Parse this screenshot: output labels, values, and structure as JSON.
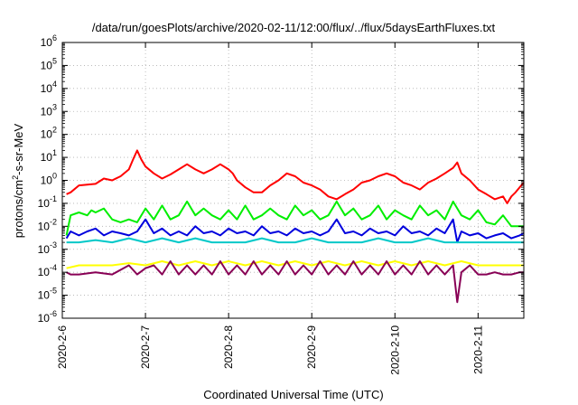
{
  "chart_data": {
    "type": "line",
    "title": "/data/run/goesPlots/archive/2020-02-11/12:00/flux/../flux/5daysEarthFluxes.txt",
    "xlabel": "Coordinated Universal Time (UTC)",
    "ylabel_main": "protons/cm",
    "ylabel_sup": "2",
    "ylabel_tail": "-s-sr-MeV",
    "y_scale": "log",
    "ylim_exponents": [
      -6,
      6
    ],
    "y_ticks": [
      {
        "base": "10",
        "exp": "-6",
        "e": -6
      },
      {
        "base": "10",
        "exp": "-5",
        "e": -5
      },
      {
        "base": "10",
        "exp": "-4",
        "e": -4
      },
      {
        "base": "10",
        "exp": "-3",
        "e": -3
      },
      {
        "base": "10",
        "exp": "-2",
        "e": -2
      },
      {
        "base": "10",
        "exp": "-1",
        "e": -1
      },
      {
        "base": "10",
        "exp": "0",
        "e": 0
      },
      {
        "base": "10",
        "exp": "1",
        "e": 1
      },
      {
        "base": "10",
        "exp": "2",
        "e": 2
      },
      {
        "base": "10",
        "exp": "3",
        "e": 3
      },
      {
        "base": "10",
        "exp": "4",
        "e": 4
      },
      {
        "base": "10",
        "exp": "5",
        "e": 5
      },
      {
        "base": "10",
        "exp": "6",
        "e": 6
      }
    ],
    "x_range_days": [
      0,
      5.55
    ],
    "x_ticks": [
      {
        "label": "2020-2-6",
        "d": 0
      },
      {
        "label": "2020-2-7",
        "d": 1
      },
      {
        "label": "2020-2-8",
        "d": 2
      },
      {
        "label": "2020-2-9",
        "d": 3
      },
      {
        "label": "2020-2-10",
        "d": 4
      },
      {
        "label": "2020-2-11",
        "d": 5
      }
    ],
    "grid": true,
    "series": [
      {
        "color": "#ff0000",
        "points": [
          [
            0.05,
            0.25
          ],
          [
            0.1,
            0.3
          ],
          [
            0.2,
            0.6
          ],
          [
            0.4,
            0.7
          ],
          [
            0.5,
            1.2
          ],
          [
            0.6,
            1.0
          ],
          [
            0.7,
            1.5
          ],
          [
            0.8,
            3
          ],
          [
            0.85,
            8
          ],
          [
            0.9,
            20
          ],
          [
            0.95,
            8
          ],
          [
            1.0,
            4
          ],
          [
            1.1,
            2
          ],
          [
            1.2,
            1.2
          ],
          [
            1.3,
            1.8
          ],
          [
            1.4,
            3
          ],
          [
            1.5,
            5
          ],
          [
            1.6,
            3
          ],
          [
            1.7,
            2
          ],
          [
            1.8,
            3
          ],
          [
            1.9,
            5
          ],
          [
            2.0,
            3
          ],
          [
            2.05,
            2
          ],
          [
            2.1,
            1
          ],
          [
            2.2,
            0.5
          ],
          [
            2.3,
            0.3
          ],
          [
            2.4,
            0.3
          ],
          [
            2.5,
            0.6
          ],
          [
            2.6,
            1.0
          ],
          [
            2.7,
            2
          ],
          [
            2.8,
            1.5
          ],
          [
            2.9,
            0.8
          ],
          [
            3.0,
            0.6
          ],
          [
            3.1,
            0.4
          ],
          [
            3.2,
            0.2
          ],
          [
            3.3,
            0.15
          ],
          [
            3.4,
            0.25
          ],
          [
            3.5,
            0.4
          ],
          [
            3.6,
            0.8
          ],
          [
            3.7,
            1.0
          ],
          [
            3.8,
            1.5
          ],
          [
            3.9,
            2.0
          ],
          [
            4.0,
            1.5
          ],
          [
            4.1,
            0.8
          ],
          [
            4.2,
            0.6
          ],
          [
            4.3,
            0.4
          ],
          [
            4.4,
            0.8
          ],
          [
            4.5,
            1.2
          ],
          [
            4.6,
            2.0
          ],
          [
            4.7,
            3.5
          ],
          [
            4.75,
            6
          ],
          [
            4.8,
            2
          ],
          [
            4.9,
            1.0
          ],
          [
            5.0,
            0.4
          ],
          [
            5.1,
            0.25
          ],
          [
            5.2,
            0.15
          ],
          [
            5.3,
            0.2
          ],
          [
            5.35,
            0.1
          ],
          [
            5.4,
            0.2
          ],
          [
            5.45,
            0.3
          ],
          [
            5.5,
            0.5
          ],
          [
            5.55,
            0.8
          ]
        ]
      },
      {
        "color": "#00ee00",
        "points": [
          [
            0.05,
            0.004
          ],
          [
            0.1,
            0.03
          ],
          [
            0.2,
            0.04
          ],
          [
            0.3,
            0.03
          ],
          [
            0.35,
            0.05
          ],
          [
            0.4,
            0.04
          ],
          [
            0.5,
            0.06
          ],
          [
            0.6,
            0.02
          ],
          [
            0.7,
            0.015
          ],
          [
            0.8,
            0.02
          ],
          [
            0.9,
            0.015
          ],
          [
            1.0,
            0.06
          ],
          [
            1.1,
            0.02
          ],
          [
            1.2,
            0.08
          ],
          [
            1.3,
            0.02
          ],
          [
            1.4,
            0.03
          ],
          [
            1.5,
            0.12
          ],
          [
            1.6,
            0.03
          ],
          [
            1.7,
            0.06
          ],
          [
            1.8,
            0.03
          ],
          [
            1.9,
            0.02
          ],
          [
            2.0,
            0.05
          ],
          [
            2.1,
            0.02
          ],
          [
            2.2,
            0.08
          ],
          [
            2.3,
            0.02
          ],
          [
            2.4,
            0.03
          ],
          [
            2.5,
            0.06
          ],
          [
            2.6,
            0.03
          ],
          [
            2.7,
            0.02
          ],
          [
            2.8,
            0.08
          ],
          [
            2.9,
            0.03
          ],
          [
            3.0,
            0.05
          ],
          [
            3.1,
            0.02
          ],
          [
            3.2,
            0.03
          ],
          [
            3.3,
            0.12
          ],
          [
            3.4,
            0.03
          ],
          [
            3.5,
            0.06
          ],
          [
            3.6,
            0.02
          ],
          [
            3.7,
            0.03
          ],
          [
            3.8,
            0.08
          ],
          [
            3.9,
            0.02
          ],
          [
            4.0,
            0.05
          ],
          [
            4.1,
            0.03
          ],
          [
            4.2,
            0.02
          ],
          [
            4.3,
            0.08
          ],
          [
            4.4,
            0.03
          ],
          [
            4.5,
            0.05
          ],
          [
            4.6,
            0.02
          ],
          [
            4.7,
            0.12
          ],
          [
            4.8,
            0.03
          ],
          [
            4.9,
            0.02
          ],
          [
            5.0,
            0.05
          ],
          [
            5.1,
            0.015
          ],
          [
            5.2,
            0.012
          ],
          [
            5.3,
            0.03
          ],
          [
            5.4,
            0.01
          ],
          [
            5.5,
            0.01
          ],
          [
            5.55,
            0.01
          ]
        ]
      },
      {
        "color": "#0000dd",
        "points": [
          [
            0.05,
            0.003
          ],
          [
            0.1,
            0.006
          ],
          [
            0.2,
            0.004
          ],
          [
            0.3,
            0.006
          ],
          [
            0.4,
            0.008
          ],
          [
            0.5,
            0.004
          ],
          [
            0.6,
            0.006
          ],
          [
            0.7,
            0.005
          ],
          [
            0.8,
            0.004
          ],
          [
            0.9,
            0.006
          ],
          [
            1.0,
            0.02
          ],
          [
            1.1,
            0.005
          ],
          [
            1.2,
            0.008
          ],
          [
            1.3,
            0.004
          ],
          [
            1.4,
            0.006
          ],
          [
            1.5,
            0.004
          ],
          [
            1.6,
            0.01
          ],
          [
            1.7,
            0.005
          ],
          [
            1.8,
            0.006
          ],
          [
            1.9,
            0.004
          ],
          [
            2.0,
            0.008
          ],
          [
            2.1,
            0.005
          ],
          [
            2.2,
            0.006
          ],
          [
            2.3,
            0.004
          ],
          [
            2.4,
            0.01
          ],
          [
            2.5,
            0.005
          ],
          [
            2.6,
            0.006
          ],
          [
            2.7,
            0.004
          ],
          [
            2.8,
            0.008
          ],
          [
            2.9,
            0.005
          ],
          [
            3.0,
            0.006
          ],
          [
            3.1,
            0.004
          ],
          [
            3.2,
            0.006
          ],
          [
            3.3,
            0.02
          ],
          [
            3.4,
            0.005
          ],
          [
            3.5,
            0.006
          ],
          [
            3.6,
            0.004
          ],
          [
            3.7,
            0.008
          ],
          [
            3.8,
            0.005
          ],
          [
            3.9,
            0.006
          ],
          [
            4.0,
            0.004
          ],
          [
            4.1,
            0.01
          ],
          [
            4.2,
            0.005
          ],
          [
            4.3,
            0.006
          ],
          [
            4.4,
            0.004
          ],
          [
            4.5,
            0.008
          ],
          [
            4.6,
            0.005
          ],
          [
            4.7,
            0.02
          ],
          [
            4.75,
            0.002
          ],
          [
            4.8,
            0.006
          ],
          [
            4.9,
            0.004
          ],
          [
            5.0,
            0.005
          ],
          [
            5.1,
            0.003
          ],
          [
            5.2,
            0.004
          ],
          [
            5.3,
            0.005
          ],
          [
            5.4,
            0.003
          ],
          [
            5.5,
            0.004
          ],
          [
            5.55,
            0.005
          ]
        ]
      },
      {
        "color": "#00c8c8",
        "points": [
          [
            0.05,
            0.002
          ],
          [
            0.2,
            0.002
          ],
          [
            0.4,
            0.0025
          ],
          [
            0.6,
            0.002
          ],
          [
            0.8,
            0.003
          ],
          [
            1.0,
            0.002
          ],
          [
            1.2,
            0.003
          ],
          [
            1.4,
            0.002
          ],
          [
            1.6,
            0.003
          ],
          [
            1.8,
            0.002
          ],
          [
            2.0,
            0.002
          ],
          [
            2.2,
            0.002
          ],
          [
            2.4,
            0.003
          ],
          [
            2.6,
            0.002
          ],
          [
            2.8,
            0.002
          ],
          [
            3.0,
            0.003
          ],
          [
            3.2,
            0.002
          ],
          [
            3.4,
            0.002
          ],
          [
            3.6,
            0.002
          ],
          [
            3.8,
            0.003
          ],
          [
            4.0,
            0.002
          ],
          [
            4.2,
            0.002
          ],
          [
            4.4,
            0.003
          ],
          [
            4.6,
            0.002
          ],
          [
            4.8,
            0.002
          ],
          [
            5.0,
            0.002
          ],
          [
            5.2,
            0.002
          ],
          [
            5.4,
            0.002
          ],
          [
            5.55,
            0.002
          ]
        ]
      },
      {
        "color": "#ffff00",
        "points": [
          [
            0.05,
            0.00015
          ],
          [
            0.2,
            0.0002
          ],
          [
            0.4,
            0.0002
          ],
          [
            0.6,
            0.0002
          ],
          [
            0.8,
            0.00025
          ],
          [
            1.0,
            0.0002
          ],
          [
            1.2,
            0.0003
          ],
          [
            1.4,
            0.0002
          ],
          [
            1.6,
            0.0003
          ],
          [
            1.8,
            0.0002
          ],
          [
            2.0,
            0.0003
          ],
          [
            2.2,
            0.0002
          ],
          [
            2.4,
            0.0003
          ],
          [
            2.6,
            0.0002
          ],
          [
            2.8,
            0.0003
          ],
          [
            3.0,
            0.0002
          ],
          [
            3.2,
            0.0003
          ],
          [
            3.4,
            0.0002
          ],
          [
            3.6,
            0.0003
          ],
          [
            3.8,
            0.0002
          ],
          [
            4.0,
            0.0003
          ],
          [
            4.2,
            0.0002
          ],
          [
            4.4,
            0.0003
          ],
          [
            4.6,
            0.0002
          ],
          [
            4.8,
            0.0003
          ],
          [
            5.0,
            0.0002
          ],
          [
            5.2,
            0.0002
          ],
          [
            5.4,
            0.0002
          ],
          [
            5.55,
            0.0002
          ]
        ]
      },
      {
        "color": "#880055",
        "points": [
          [
            0.05,
            0.0001
          ],
          [
            0.1,
            8e-05
          ],
          [
            0.2,
            8e-05
          ],
          [
            0.4,
            0.0001
          ],
          [
            0.6,
            8e-05
          ],
          [
            0.8,
            0.0002
          ],
          [
            0.9,
            8e-05
          ],
          [
            1.0,
            0.00015
          ],
          [
            1.1,
            0.0002
          ],
          [
            1.2,
            8e-05
          ],
          [
            1.3,
            0.0003
          ],
          [
            1.4,
            8e-05
          ],
          [
            1.5,
            0.0002
          ],
          [
            1.6,
            8e-05
          ],
          [
            1.7,
            0.0002
          ],
          [
            1.8,
            8e-05
          ],
          [
            1.9,
            0.0003
          ],
          [
            2.0,
            8e-05
          ],
          [
            2.1,
            0.0002
          ],
          [
            2.2,
            8e-05
          ],
          [
            2.3,
            0.0003
          ],
          [
            2.4,
            8e-05
          ],
          [
            2.5,
            0.0002
          ],
          [
            2.6,
            8e-05
          ],
          [
            2.7,
            0.0003
          ],
          [
            2.8,
            8e-05
          ],
          [
            2.9,
            0.0002
          ],
          [
            3.0,
            8e-05
          ],
          [
            3.1,
            0.0003
          ],
          [
            3.2,
            8e-05
          ],
          [
            3.3,
            0.0002
          ],
          [
            3.4,
            8e-05
          ],
          [
            3.5,
            0.0003
          ],
          [
            3.6,
            8e-05
          ],
          [
            3.7,
            0.0002
          ],
          [
            3.8,
            8e-05
          ],
          [
            3.9,
            0.0003
          ],
          [
            4.0,
            8e-05
          ],
          [
            4.1,
            0.0002
          ],
          [
            4.2,
            8e-05
          ],
          [
            4.3,
            0.0003
          ],
          [
            4.4,
            8e-05
          ],
          [
            4.5,
            0.0002
          ],
          [
            4.6,
            8e-05
          ],
          [
            4.7,
            0.0002
          ],
          [
            4.75,
            5e-06
          ],
          [
            4.8,
            0.0001
          ],
          [
            4.9,
            0.0002
          ],
          [
            5.0,
            8e-05
          ],
          [
            5.1,
            8e-05
          ],
          [
            5.2,
            0.0001
          ],
          [
            5.3,
            8e-05
          ],
          [
            5.4,
            8e-05
          ],
          [
            5.5,
            0.0001
          ],
          [
            5.55,
            0.0001
          ]
        ]
      }
    ]
  }
}
